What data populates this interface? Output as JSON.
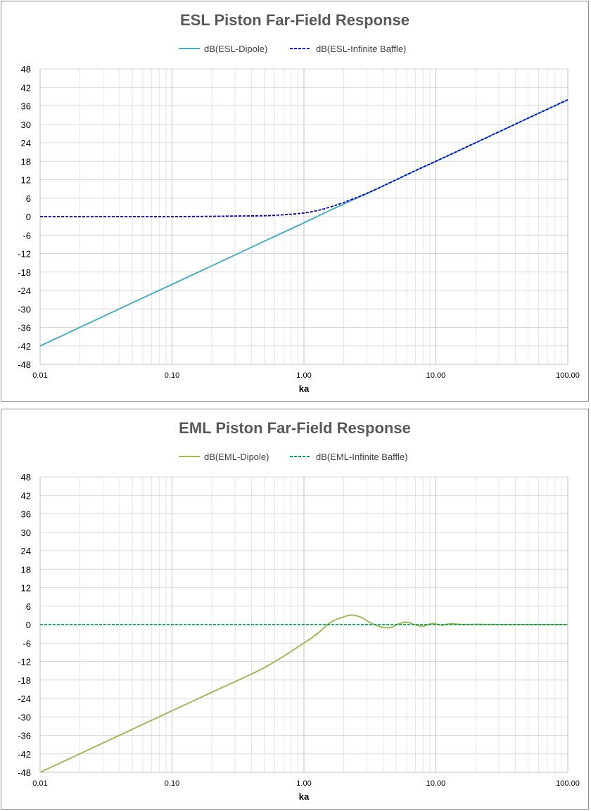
{
  "chart_data": [
    {
      "type": "line",
      "title": "ESL Piston Far-Field Response",
      "xlabel": "ka",
      "ylabel": "",
      "xscale": "log",
      "xlim": [
        0.01,
        100
      ],
      "ylim": [
        -48,
        48
      ],
      "xticks": [
        "0.01",
        "0.10",
        "1.00",
        "10.00",
        "100.00"
      ],
      "yticks": [
        "48",
        "42",
        "36",
        "30",
        "24",
        "18",
        "12",
        "6",
        "0",
        "-6",
        "-12",
        "-18",
        "-24",
        "-30",
        "-36",
        "-42",
        "-48"
      ],
      "grid": true,
      "legend": "top",
      "series": [
        {
          "name": "dB(ESL-Dipole)",
          "color": "#4bacc6",
          "dash": "solid",
          "x": [
            0.01,
            0.02,
            0.05,
            0.1,
            0.2,
            0.5,
            1,
            1.5,
            2,
            3,
            5,
            10,
            20,
            50,
            100
          ],
          "y": [
            -42,
            -36,
            -28,
            -22,
            -16,
            -8,
            -2,
            1.6,
            4.1,
            7.5,
            12,
            18,
            24,
            32,
            38
          ]
        },
        {
          "name": "dB(ESL-Infinite Baffle)",
          "color": "#0000cc",
          "dash": "dashed",
          "x": [
            0.01,
            0.02,
            0.05,
            0.1,
            0.2,
            0.3,
            0.5,
            0.7,
            1,
            1.3,
            1.6,
            2,
            2.5,
            3,
            4,
            5,
            7,
            10,
            20,
            50,
            100
          ],
          "y": [
            0,
            0,
            0,
            0,
            0.1,
            0.2,
            0.3,
            0.6,
            1.2,
            2.1,
            3.2,
            4.6,
            6.2,
            7.6,
            10,
            12,
            15,
            18,
            24,
            32,
            38
          ]
        }
      ]
    },
    {
      "type": "line",
      "title": "EML Piston Far-Field Response",
      "xlabel": "ka",
      "ylabel": "",
      "xscale": "log",
      "xlim": [
        0.01,
        100
      ],
      "ylim": [
        -48,
        48
      ],
      "xticks": [
        "0.01",
        "0.10",
        "1.00",
        "10.00",
        "100.00"
      ],
      "yticks": [
        "48",
        "42",
        "36",
        "30",
        "24",
        "18",
        "12",
        "6",
        "0",
        "-6",
        "-12",
        "-18",
        "-24",
        "-30",
        "-36",
        "-42",
        "-48"
      ],
      "grid": true,
      "legend": "top",
      "series": [
        {
          "name": "dB(EML-Dipole)",
          "color": "#9bbb59",
          "dash": "solid",
          "x": [
            0.01,
            0.02,
            0.05,
            0.1,
            0.2,
            0.5,
            1,
            1.3,
            1.6,
            2,
            2.3,
            2.7,
            3.2,
            3.8,
            4.5,
            5.2,
            6,
            7,
            8,
            9.5,
            11,
            13,
            16,
            20,
            30,
            50,
            100
          ],
          "y": [
            -48,
            -42,
            -34,
            -28,
            -22,
            -14,
            -6,
            -2.5,
            0.8,
            2.5,
            3.1,
            2.4,
            0.6,
            -0.7,
            -1.0,
            0.2,
            0.8,
            -0.1,
            -0.5,
            0.4,
            -0.2,
            0.3,
            0,
            0.1,
            0,
            0,
            0
          ]
        },
        {
          "name": "dB(EML-Infinite Baffle)",
          "color": "#00a050",
          "dash": "dashed",
          "x": [
            0.01,
            100
          ],
          "y": [
            0,
            0
          ]
        }
      ]
    }
  ]
}
